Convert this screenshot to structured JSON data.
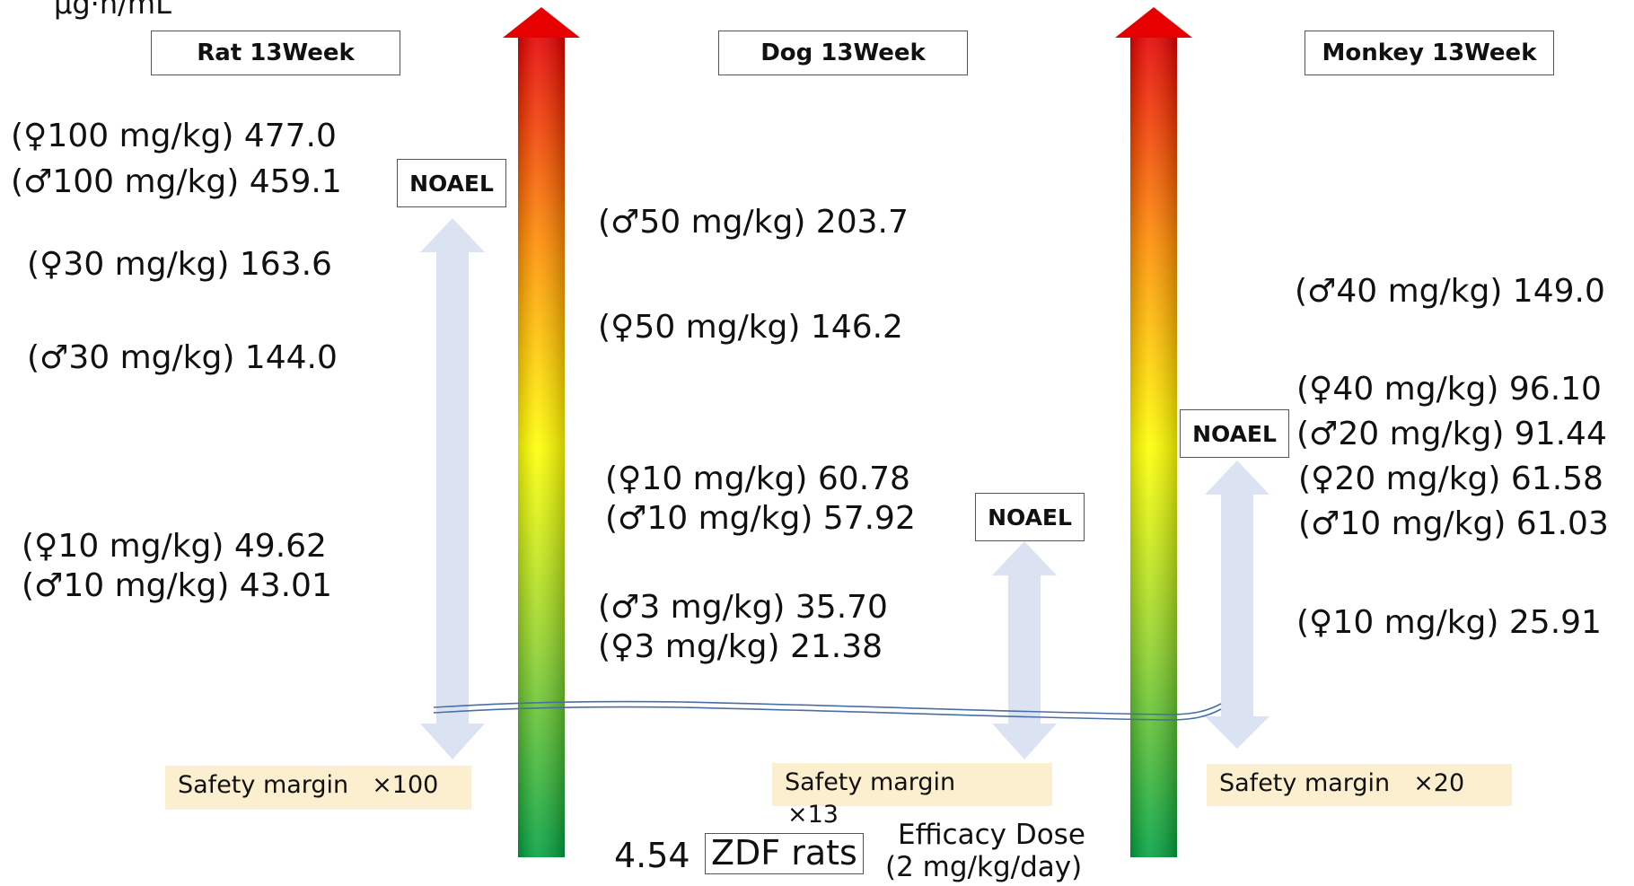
{
  "unit": "µg·h/mL",
  "headers": {
    "rat": "Rat 13Week",
    "dog": "Dog 13Week",
    "monkey": "Monkey 13Week"
  },
  "noael": {
    "rat": "NOAEL",
    "dog": "NOAEL",
    "monkey": "NOAEL"
  },
  "rat_values": [
    "(♀100 mg/kg) 477.0",
    "(♂100 mg/kg) 459.1",
    "(♀30 mg/kg) 163.6",
    "(♂30 mg/kg) 144.0",
    "(♀10 mg/kg) 49.62",
    "(♂10 mg/kg) 43.01"
  ],
  "dog_values": [
    "(♂50 mg/kg) 203.7",
    "(♀50 mg/kg) 146.2",
    "(♀10 mg/kg) 60.78",
    "(♂10 mg/kg) 57.92",
    "(♂3 mg/kg) 35.70",
    "(♀3 mg/kg) 21.38"
  ],
  "monkey_values": [
    "(♂40 mg/kg) 149.0",
    "(♀40 mg/kg) 96.10",
    "(♂20 mg/kg) 91.44",
    "(♀20 mg/kg) 61.58",
    "(♂10 mg/kg) 61.03",
    "(♀10 mg/kg) 25.91"
  ],
  "safety": {
    "rat": {
      "label": "Safety margin",
      "multiplier": "×100"
    },
    "dog": {
      "label": "Safety margin",
      "multiplier": "×13"
    },
    "monkey": {
      "label": "Safety margin",
      "multiplier": "×20"
    }
  },
  "efficacy": {
    "value": "4.54",
    "model": "ZDF rats",
    "label": "Efficacy Dose",
    "dose": "(2 mg/kg/day)"
  },
  "colors": {
    "gradient_top": "#e60000",
    "gradient_mid": "#ffff00",
    "gradient_bottom": "#00a040",
    "double_arrow": "#dbe3f3",
    "safety_box": "#fcefcf",
    "baseline": "#4a6fa5"
  }
}
